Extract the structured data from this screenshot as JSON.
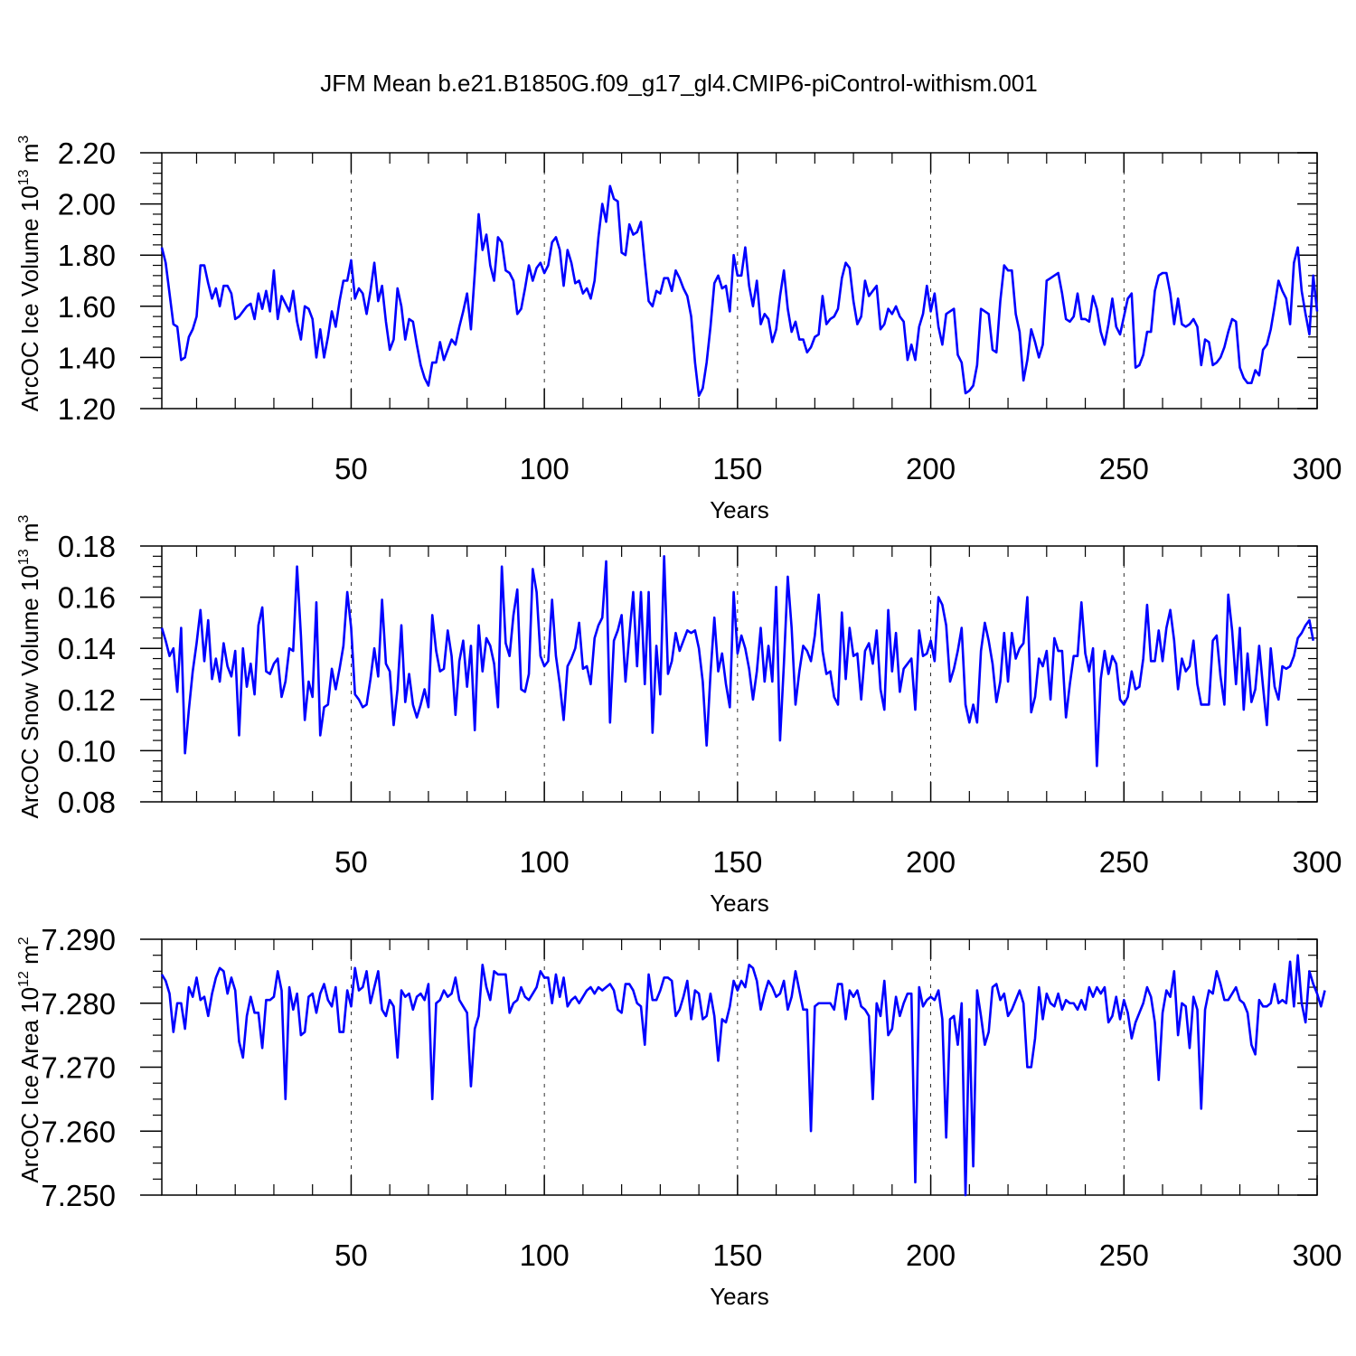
{
  "figure": {
    "title": "JFM Mean b.e21.B1850G.f09_g17_gl4.CMIP6-piControl-withism.001",
    "line_color": "#0000ff"
  },
  "chart_data": [
    {
      "type": "line",
      "ylabel": "ArcOC Ice Volume 10",
      "ylabel_exp": "13",
      "ylabel_unit": " m",
      "ylabel_unit_exp": "3",
      "xlabel": "Years",
      "xlim": [
        1,
        300
      ],
      "ylim": [
        1.2,
        2.2
      ],
      "yticks": [
        1.2,
        1.4,
        1.6,
        1.8,
        2.0,
        2.2
      ],
      "ytick_labels": [
        "1.20",
        "1.40",
        "1.60",
        "1.80",
        "2.00",
        "2.20"
      ],
      "xticks": [
        50,
        100,
        150,
        200,
        250,
        300
      ],
      "xtick_labels": [
        "50",
        "100",
        "150",
        "200",
        "250",
        "300"
      ],
      "grid": "vertical dashed at major x ticks",
      "series": [
        {
          "x_start": 1,
          "values": [
            1.83,
            1.77,
            1.65,
            1.53,
            1.52,
            1.39,
            1.4,
            1.48,
            1.51,
            1.56,
            1.76,
            1.76,
            1.69,
            1.63,
            1.67,
            1.6,
            1.68,
            1.68,
            1.65,
            1.55,
            1.56,
            1.58,
            1.6,
            1.61,
            1.55,
            1.65,
            1.59,
            1.66,
            1.58,
            1.74,
            1.55,
            1.64,
            1.61,
            1.58,
            1.66,
            1.54,
            1.47,
            1.6,
            1.59,
            1.55,
            1.4,
            1.51,
            1.4,
            1.48,
            1.58,
            1.52,
            1.62,
            1.7,
            1.7,
            1.78,
            1.63,
            1.67,
            1.65,
            1.57,
            1.66,
            1.77,
            1.62,
            1.68,
            1.54,
            1.43,
            1.47,
            1.67,
            1.6,
            1.47,
            1.55,
            1.54,
            1.45,
            1.37,
            1.32,
            1.29,
            1.38,
            1.38,
            1.46,
            1.39,
            1.43,
            1.47,
            1.45,
            1.52,
            1.58,
            1.65,
            1.51,
            1.73,
            1.96,
            1.82,
            1.88,
            1.76,
            1.7,
            1.87,
            1.85,
            1.74,
            1.73,
            1.7,
            1.57,
            1.59,
            1.67,
            1.76,
            1.7,
            1.75,
            1.77,
            1.73,
            1.76,
            1.85,
            1.87,
            1.82,
            1.68,
            1.82,
            1.77,
            1.69,
            1.7,
            1.65,
            1.67,
            1.63,
            1.7,
            1.87,
            2.0,
            1.93,
            2.07,
            2.02,
            2.01,
            1.81,
            1.8,
            1.92,
            1.88,
            1.89,
            1.93,
            1.77,
            1.62,
            1.6,
            1.66,
            1.65,
            1.71,
            1.71,
            1.66,
            1.74,
            1.71,
            1.67,
            1.64,
            1.56,
            1.38,
            1.25,
            1.28,
            1.38,
            1.52,
            1.69,
            1.72,
            1.67,
            1.68,
            1.58,
            1.8,
            1.72,
            1.72,
            1.83,
            1.68,
            1.6,
            1.7,
            1.53,
            1.57,
            1.55,
            1.46,
            1.51,
            1.64,
            1.74,
            1.59,
            1.5,
            1.54,
            1.47,
            1.47,
            1.42,
            1.44,
            1.48,
            1.49,
            1.64,
            1.53,
            1.55,
            1.56,
            1.59,
            1.71,
            1.77,
            1.75,
            1.62,
            1.53,
            1.56,
            1.7,
            1.64,
            1.66,
            1.68,
            1.51,
            1.53,
            1.59,
            1.57,
            1.6,
            1.56,
            1.54,
            1.39,
            1.45,
            1.39,
            1.52,
            1.57,
            1.68,
            1.58,
            1.65,
            1.52,
            1.45,
            1.57,
            1.58,
            1.59,
            1.41,
            1.38,
            1.26,
            1.27,
            1.29,
            1.37,
            1.59,
            1.58,
            1.57,
            1.43,
            1.42,
            1.62,
            1.76,
            1.74,
            1.74,
            1.57,
            1.5,
            1.31,
            1.39,
            1.51,
            1.46,
            1.4,
            1.45,
            1.7,
            1.71,
            1.72,
            1.73,
            1.65,
            1.55,
            1.54,
            1.56,
            1.65,
            1.55,
            1.55,
            1.54,
            1.64,
            1.59,
            1.5,
            1.45,
            1.53,
            1.63,
            1.52,
            1.49,
            1.56,
            1.63,
            1.65,
            1.36,
            1.37,
            1.41,
            1.5,
            1.5,
            1.66,
            1.72,
            1.73,
            1.73,
            1.65,
            1.53,
            1.63,
            1.53,
            1.52,
            1.53,
            1.55,
            1.52,
            1.37,
            1.47,
            1.46,
            1.37,
            1.38,
            1.4,
            1.44,
            1.5,
            1.55,
            1.54,
            1.36,
            1.32,
            1.3,
            1.3,
            1.35,
            1.33,
            1.43,
            1.45,
            1.51,
            1.6,
            1.7,
            1.66,
            1.63,
            1.53,
            1.77,
            1.83,
            1.66,
            1.57,
            1.49,
            1.72,
            1.58
          ]
        }
      ]
    },
    {
      "type": "line",
      "ylabel": "ArcOC Snow Volume 10",
      "ylabel_exp": "13",
      "ylabel_unit": " m",
      "ylabel_unit_exp": "3",
      "xlabel": "Years",
      "xlim": [
        1,
        300
      ],
      "ylim": [
        0.08,
        0.18
      ],
      "yticks": [
        0.08,
        0.1,
        0.12,
        0.14,
        0.16,
        0.18
      ],
      "ytick_labels": [
        "0.08",
        "0.10",
        "0.12",
        "0.14",
        "0.16",
        "0.18"
      ],
      "xticks": [
        50,
        100,
        150,
        200,
        250,
        300
      ],
      "xtick_labels": [
        "50",
        "100",
        "150",
        "200",
        "250",
        "300"
      ],
      "grid": "vertical dashed at major x ticks",
      "series": [
        {
          "x_start": 1,
          "values": [
            0.148,
            0.143,
            0.137,
            0.14,
            0.123,
            0.148,
            0.099,
            0.116,
            0.131,
            0.142,
            0.155,
            0.135,
            0.151,
            0.128,
            0.136,
            0.127,
            0.142,
            0.133,
            0.129,
            0.139,
            0.106,
            0.14,
            0.125,
            0.134,
            0.122,
            0.149,
            0.156,
            0.131,
            0.13,
            0.134,
            0.136,
            0.121,
            0.127,
            0.14,
            0.139,
            0.172,
            0.145,
            0.112,
            0.127,
            0.121,
            0.158,
            0.106,
            0.117,
            0.118,
            0.132,
            0.124,
            0.132,
            0.141,
            0.162,
            0.148,
            0.122,
            0.12,
            0.117,
            0.118,
            0.128,
            0.14,
            0.129,
            0.159,
            0.134,
            0.131,
            0.11,
            0.124,
            0.149,
            0.119,
            0.13,
            0.118,
            0.113,
            0.118,
            0.124,
            0.117,
            0.153,
            0.139,
            0.131,
            0.132,
            0.147,
            0.137,
            0.114,
            0.135,
            0.143,
            0.125,
            0.141,
            0.108,
            0.149,
            0.131,
            0.144,
            0.141,
            0.134,
            0.117,
            0.172,
            0.142,
            0.137,
            0.153,
            0.163,
            0.124,
            0.123,
            0.13,
            0.171,
            0.162,
            0.137,
            0.133,
            0.135,
            0.159,
            0.137,
            0.126,
            0.112,
            0.133,
            0.136,
            0.14,
            0.15,
            0.132,
            0.133,
            0.126,
            0.144,
            0.149,
            0.152,
            0.174,
            0.111,
            0.143,
            0.147,
            0.153,
            0.127,
            0.145,
            0.162,
            0.133,
            0.162,
            0.126,
            0.162,
            0.107,
            0.141,
            0.122,
            0.176,
            0.13,
            0.135,
            0.146,
            0.139,
            0.143,
            0.147,
            0.146,
            0.147,
            0.14,
            0.127,
            0.102,
            0.13,
            0.152,
            0.131,
            0.138,
            0.126,
            0.117,
            0.162,
            0.138,
            0.145,
            0.14,
            0.132,
            0.12,
            0.131,
            0.148,
            0.127,
            0.141,
            0.127,
            0.164,
            0.104,
            0.134,
            0.168,
            0.148,
            0.118,
            0.131,
            0.141,
            0.139,
            0.135,
            0.145,
            0.161,
            0.139,
            0.13,
            0.131,
            0.121,
            0.118,
            0.154,
            0.128,
            0.148,
            0.137,
            0.138,
            0.12,
            0.139,
            0.142,
            0.134,
            0.147,
            0.124,
            0.116,
            0.155,
            0.131,
            0.146,
            0.123,
            0.132,
            0.134,
            0.136,
            0.116,
            0.147,
            0.137,
            0.138,
            0.143,
            0.135,
            0.16,
            0.157,
            0.149,
            0.127,
            0.132,
            0.139,
            0.148,
            0.118,
            0.111,
            0.118,
            0.111,
            0.139,
            0.15,
            0.143,
            0.134,
            0.119,
            0.127,
            0.146,
            0.127,
            0.146,
            0.136,
            0.14,
            0.142,
            0.16,
            0.115,
            0.121,
            0.136,
            0.133,
            0.139,
            0.12,
            0.144,
            0.139,
            0.139,
            0.113,
            0.126,
            0.137,
            0.137,
            0.158,
            0.138,
            0.131,
            0.14,
            0.094,
            0.128,
            0.139,
            0.13,
            0.137,
            0.134,
            0.12,
            0.118,
            0.121,
            0.131,
            0.124,
            0.125,
            0.136,
            0.157,
            0.135,
            0.135,
            0.147,
            0.135,
            0.148,
            0.155,
            0.143,
            0.124,
            0.136,
            0.131,
            0.133,
            0.143,
            0.126,
            0.118,
            0.118,
            0.118,
            0.143,
            0.145,
            0.129,
            0.118,
            0.161,
            0.147,
            0.126,
            0.148,
            0.116,
            0.138,
            0.119,
            0.124,
            0.141,
            0.125,
            0.11,
            0.14,
            0.125,
            0.12,
            0.133,
            0.132,
            0.133,
            0.137,
            0.144,
            0.146,
            0.149,
            0.151,
            0.143
          ]
        }
      ]
    },
    {
      "type": "line",
      "ylabel": "ArcOC Ice Area 10",
      "ylabel_exp": "12",
      "ylabel_unit": " m",
      "ylabel_unit_exp": "2",
      "xlabel": "Years",
      "xlim": [
        1,
        300
      ],
      "ylim": [
        7.25,
        7.29
      ],
      "yticks": [
        7.25,
        7.26,
        7.27,
        7.28,
        7.29
      ],
      "ytick_labels": [
        "7.250",
        "7.260",
        "7.270",
        "7.280",
        "7.290"
      ],
      "xticks": [
        50,
        100,
        150,
        200,
        250,
        300
      ],
      "xtick_labels": [
        "50",
        "100",
        "150",
        "200",
        "250",
        "300"
      ],
      "grid": "vertical dashed at major x ticks",
      "series": [
        {
          "x_start": 1,
          "values": [
            7.2845,
            7.2835,
            7.2815,
            7.2755,
            7.28,
            7.28,
            7.276,
            7.2825,
            7.281,
            7.284,
            7.2805,
            7.281,
            7.278,
            7.2815,
            7.284,
            7.2855,
            7.285,
            7.2815,
            7.284,
            7.282,
            7.274,
            7.2715,
            7.278,
            7.281,
            7.2785,
            7.2785,
            7.273,
            7.2805,
            7.2805,
            7.281,
            7.285,
            7.282,
            7.265,
            7.2825,
            7.279,
            7.2815,
            7.275,
            7.2755,
            7.281,
            7.2815,
            7.2785,
            7.2815,
            7.283,
            7.2805,
            7.2795,
            7.2825,
            7.2755,
            7.2755,
            7.282,
            7.2795,
            7.2855,
            7.282,
            7.2825,
            7.285,
            7.28,
            7.2825,
            7.285,
            7.279,
            7.278,
            7.2805,
            7.2795,
            7.2715,
            7.282,
            7.281,
            7.2815,
            7.279,
            7.281,
            7.2815,
            7.2805,
            7.283,
            7.265,
            7.28,
            7.2805,
            7.282,
            7.281,
            7.2815,
            7.284,
            7.2805,
            7.2795,
            7.2785,
            7.267,
            7.276,
            7.278,
            7.286,
            7.2825,
            7.2805,
            7.285,
            7.2845,
            7.2845,
            7.2845,
            7.2785,
            7.28,
            7.2805,
            7.2825,
            7.281,
            7.2805,
            7.2815,
            7.2825,
            7.285,
            7.284,
            7.284,
            7.28,
            7.2845,
            7.281,
            7.284,
            7.2795,
            7.2805,
            7.281,
            7.28,
            7.281,
            7.282,
            7.2825,
            7.2815,
            7.2825,
            7.282,
            7.2825,
            7.283,
            7.282,
            7.279,
            7.2785,
            7.283,
            7.283,
            7.282,
            7.28,
            7.2795,
            7.2735,
            7.2845,
            7.2805,
            7.2805,
            7.282,
            7.284,
            7.284,
            7.2835,
            7.278,
            7.279,
            7.281,
            7.2835,
            7.2775,
            7.282,
            7.2815,
            7.2775,
            7.278,
            7.2815,
            7.278,
            7.271,
            7.2775,
            7.277,
            7.2795,
            7.2835,
            7.282,
            7.2835,
            7.2825,
            7.286,
            7.2855,
            7.2835,
            7.279,
            7.2815,
            7.2835,
            7.2825,
            7.281,
            7.2815,
            7.2835,
            7.279,
            7.281,
            7.285,
            7.282,
            7.279,
            7.279,
            7.26,
            7.2795,
            7.28,
            7.28,
            7.28,
            7.28,
            7.279,
            7.283,
            7.283,
            7.2775,
            7.282,
            7.281,
            7.282,
            7.2795,
            7.279,
            7.278,
            7.265,
            7.28,
            7.278,
            7.2835,
            7.275,
            7.276,
            7.281,
            7.278,
            7.28,
            7.2815,
            7.2815,
            7.252,
            7.2825,
            7.2795,
            7.2805,
            7.281,
            7.2805,
            7.282,
            7.2775,
            7.259,
            7.2775,
            7.278,
            7.2735,
            7.28,
            7.25,
            7.2775,
            7.2545,
            7.282,
            7.278,
            7.2735,
            7.2755,
            7.2825,
            7.283,
            7.2805,
            7.2815,
            7.278,
            7.279,
            7.2805,
            7.282,
            7.28,
            7.27,
            7.27,
            7.2745,
            7.2825,
            7.2775,
            7.2815,
            7.28,
            7.2795,
            7.2815,
            7.279,
            7.2805,
            7.28,
            7.28,
            7.279,
            7.2805,
            7.279,
            7.2825,
            7.281,
            7.2825,
            7.2815,
            7.2825,
            7.277,
            7.278,
            7.281,
            7.2775,
            7.2805,
            7.2785,
            7.2745,
            7.277,
            7.2785,
            7.28,
            7.2825,
            7.281,
            7.277,
            7.268,
            7.2785,
            7.282,
            7.281,
            7.285,
            7.275,
            7.28,
            7.2795,
            7.273,
            7.281,
            7.279,
            7.2635,
            7.279,
            7.282,
            7.2815,
            7.285,
            7.283,
            7.2805,
            7.2805,
            7.2815,
            7.2825,
            7.2805,
            7.28,
            7.2785,
            7.2735,
            7.272,
            7.2805,
            7.2795,
            7.2795,
            7.28,
            7.283,
            7.28,
            7.2805,
            7.28,
            7.2865,
            7.2795,
            7.2875,
            7.28,
            7.277,
            7.285,
            7.283,
            7.2815,
            7.2795,
            7.282
          ]
        }
      ]
    }
  ]
}
